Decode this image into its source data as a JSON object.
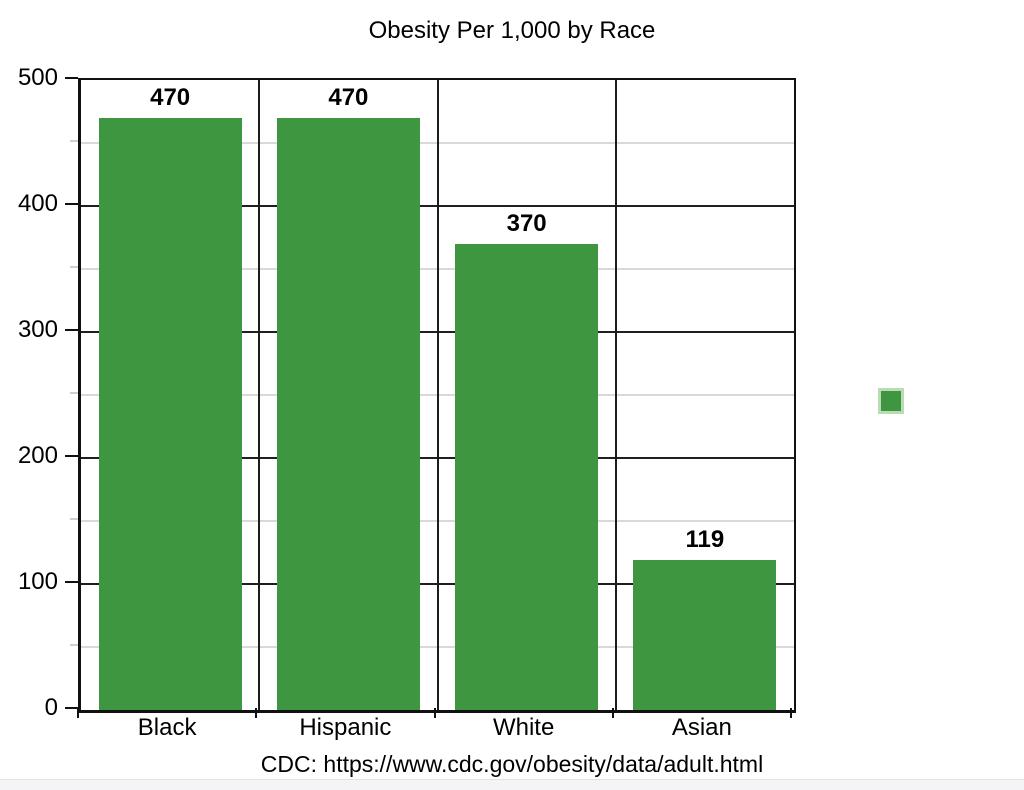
{
  "title": "Obesity Per 1,000 by Race",
  "caption": "CDC: https://www.cdc.gov/obesity/data/adult.html",
  "colors": {
    "bar": "#3F9641",
    "legend_border": "#B9DCB5",
    "major_gridline": "#1F1F1F",
    "minor_gridline": "#D9D9D9",
    "axis": "#111111"
  },
  "chart_data": {
    "type": "bar",
    "title": "Obesity Per 1,000 by Race",
    "categories": [
      "Black",
      "Hispanic",
      "White",
      "Asian"
    ],
    "values": [
      470,
      470,
      370,
      119
    ],
    "data_labels": [
      "470",
      "470",
      "370",
      "119"
    ],
    "xlabel": "",
    "ylabel": "",
    "ylim": [
      0,
      500
    ],
    "y_major_step": 100,
    "y_minor_step": 50,
    "y_tick_labels": [
      "0",
      "100",
      "200",
      "300",
      "400",
      "500"
    ],
    "grid": "horizontal major (black) and minor (light gray), vertical category separators",
    "legend": {
      "position": "right",
      "swatch_color": "#3F9641",
      "entries": [
        ""
      ]
    },
    "source_caption": "CDC: https://www.cdc.gov/obesity/data/adult.html"
  }
}
